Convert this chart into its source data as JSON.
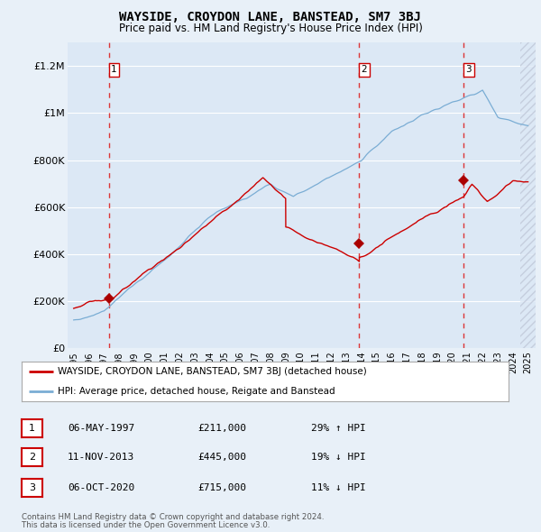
{
  "title": "WAYSIDE, CROYDON LANE, BANSTEAD, SM7 3BJ",
  "subtitle": "Price paid vs. HM Land Registry's House Price Index (HPI)",
  "background_color": "#e8f0f8",
  "plot_background": "#dce8f5",
  "ylim": [
    0,
    1300000
  ],
  "yticks": [
    0,
    200000,
    400000,
    600000,
    800000,
    1000000,
    1200000
  ],
  "ytick_labels": [
    "£0",
    "£200K",
    "£400K",
    "£600K",
    "£800K",
    "£1M",
    "£1.2M"
  ],
  "sales": [
    {
      "date_num": 1997.35,
      "price": 211000,
      "label": "1"
    },
    {
      "date_num": 2013.86,
      "price": 445000,
      "label": "2"
    },
    {
      "date_num": 2020.76,
      "price": 715000,
      "label": "3"
    }
  ],
  "sale_annotations": [
    {
      "label": "1",
      "date": "06-MAY-1997",
      "price": "£211,000",
      "hpi": "29% ↑ HPI"
    },
    {
      "label": "2",
      "date": "11-NOV-2013",
      "price": "£445,000",
      "hpi": "19% ↓ HPI"
    },
    {
      "label": "3",
      "date": "06-OCT-2020",
      "price": "£715,000",
      "hpi": "11% ↓ HPI"
    }
  ],
  "legend_line1": "WAYSIDE, CROYDON LANE, BANSTEAD, SM7 3BJ (detached house)",
  "legend_line2": "HPI: Average price, detached house, Reigate and Banstead",
  "footer1": "Contains HM Land Registry data © Crown copyright and database right 2024.",
  "footer2": "This data is licensed under the Open Government Licence v3.0.",
  "hpi_color": "#7aadd4",
  "sale_line_color": "#cc0000",
  "sale_dot_color": "#aa0000",
  "sale_vline_color": "#dd2222",
  "xtick_years": [
    1995,
    1996,
    1997,
    1998,
    1999,
    2000,
    2001,
    2002,
    2003,
    2004,
    2005,
    2006,
    2007,
    2008,
    2009,
    2010,
    2011,
    2012,
    2013,
    2014,
    2015,
    2016,
    2017,
    2018,
    2019,
    2020,
    2021,
    2022,
    2023,
    2024,
    2025
  ]
}
